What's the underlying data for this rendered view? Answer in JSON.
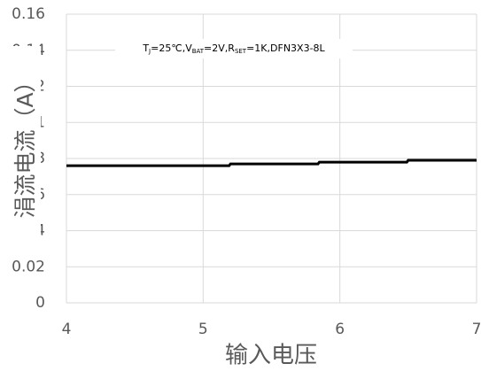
{
  "chart_data": {
    "type": "line",
    "x": [
      4,
      4.2,
      4.6,
      5.0,
      5.19,
      5.2,
      5.4,
      5.7,
      5.84,
      5.85,
      6.2,
      6.49,
      6.5,
      6.7,
      6.85,
      7
    ],
    "series": [
      {
        "color": "#000000",
        "values": [
          0.076,
          0.076,
          0.076,
          0.076,
          0.076,
          0.077,
          0.077,
          0.077,
          0.077,
          0.078,
          0.078,
          0.078,
          0.079,
          0.079,
          0.079,
          0.079
        ]
      }
    ],
    "xlim": [
      4,
      7
    ],
    "xticks": [
      4,
      5,
      6,
      7
    ],
    "ylim": [
      0,
      0.16
    ],
    "yticks": [
      0,
      0.02,
      0.04,
      0.06,
      0.08,
      0.1,
      0.12,
      0.14,
      0.16
    ],
    "grid": true,
    "x_label": "输入电压",
    "y_label": "涓流电流（A）",
    "annotation_parts": [
      "T",
      "J",
      "=25℃,V",
      "BAT",
      "=2V,R",
      "SET",
      "=1K,DFN3X3-8L"
    ]
  }
}
